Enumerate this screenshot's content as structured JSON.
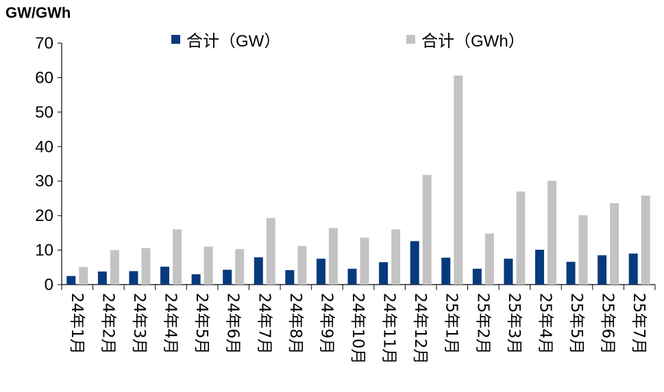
{
  "chart_data": {
    "type": "bar",
    "unit_label": "GW/GWh",
    "categories": [
      [
        "24",
        "年",
        "1",
        "月"
      ],
      [
        "24",
        "年",
        "2",
        "月"
      ],
      [
        "24",
        "年",
        "3",
        "月"
      ],
      [
        "24",
        "年",
        "4",
        "月"
      ],
      [
        "24",
        "年",
        "5",
        "月"
      ],
      [
        "24",
        "年",
        "6",
        "月"
      ],
      [
        "24",
        "年",
        "7",
        "月"
      ],
      [
        "24",
        "年",
        "8",
        "月"
      ],
      [
        "24",
        "年",
        "9",
        "月"
      ],
      [
        "24",
        "年",
        "10",
        "月"
      ],
      [
        "24",
        "年",
        "11",
        "月"
      ],
      [
        "24",
        "年",
        "12",
        "月"
      ],
      [
        "25",
        "年",
        "1",
        "月"
      ],
      [
        "25",
        "年",
        "2",
        "月"
      ],
      [
        "25",
        "年",
        "3",
        "月"
      ],
      [
        "25",
        "年",
        "4",
        "月"
      ],
      [
        "25",
        "年",
        "5",
        "月"
      ],
      [
        "25",
        "年",
        "6",
        "月"
      ],
      [
        "25",
        "年",
        "7",
        "月"
      ]
    ],
    "series": [
      {
        "name": "合计（GW）",
        "color": "#073a7d",
        "values": [
          2.5,
          3.8,
          3.9,
          5.2,
          3.0,
          4.3,
          7.9,
          4.2,
          7.5,
          4.6,
          6.5,
          12.6,
          7.8,
          4.6,
          7.5,
          10.1,
          6.6,
          8.5,
          9.0
        ]
      },
      {
        "name": "合计（GWh）",
        "color": "#c3c3c3",
        "values": [
          5.1,
          10.0,
          10.6,
          16.0,
          11.0,
          10.3,
          19.3,
          11.2,
          16.4,
          13.6,
          16.0,
          31.8,
          60.6,
          14.8,
          27.0,
          30.1,
          20.1,
          23.6,
          25.8
        ]
      }
    ],
    "ylim": [
      0,
      70
    ],
    "yticks": [
      0,
      10,
      20,
      30,
      40,
      50,
      60,
      70
    ],
    "legend_position": "top",
    "grid": false
  }
}
